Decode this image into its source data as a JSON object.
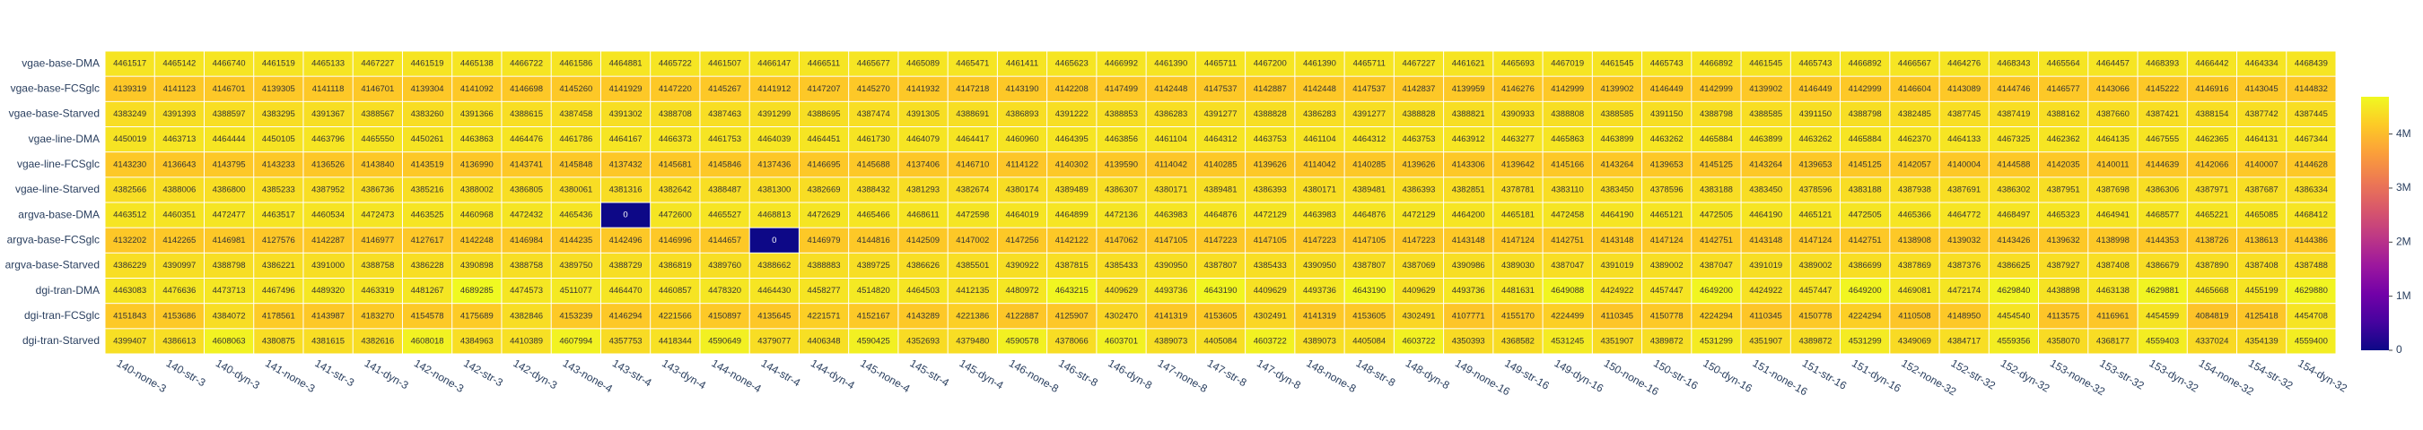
{
  "chart_data": {
    "type": "heatmap",
    "colorscale": "Plasma",
    "x": [
      "140-none-3",
      "140-str-3",
      "140-dyn-3",
      "141-none-3",
      "141-str-3",
      "141-dyn-3",
      "142-none-3",
      "142-str-3",
      "142-dyn-3",
      "143-none-4",
      "143-str-4",
      "143-dyn-4",
      "144-none-4",
      "144-str-4",
      "144-dyn-4",
      "145-none-4",
      "145-str-4",
      "145-dyn-4",
      "146-none-8",
      "146-str-8",
      "146-dyn-8",
      "147-none-8",
      "147-str-8",
      "147-dyn-8",
      "148-none-8",
      "148-str-8",
      "148-dyn-8",
      "149-none-16",
      "149-str-16",
      "149-dyn-16",
      "150-none-16",
      "150-str-16",
      "150-dyn-16",
      "151-none-16",
      "151-str-16",
      "151-dyn-16",
      "152-none-32",
      "152-str-32",
      "152-dyn-32",
      "153-none-32",
      "153-str-32",
      "153-dyn-32",
      "154-none-32",
      "154-str-32",
      "154-dyn-32"
    ],
    "y": [
      "vgae-base-DMA",
      "vgae-base-FCSglc",
      "vgae-base-Starved",
      "vgae-line-DMA",
      "vgae-line-FCSglc",
      "vgae-line-Starved",
      "argva-base-DMA",
      "argva-base-FCSglc",
      "argva-base-Starved",
      "dgi-tran-DMA",
      "dgi-tran-FCSglc",
      "dgi-tran-Starved"
    ],
    "z": [
      [
        4461517,
        4465142,
        4466740,
        4461519,
        4465133,
        4467227,
        4461519,
        4465138,
        4466722,
        4461586,
        4464881,
        4465722,
        4461507,
        4466147,
        4466511,
        4465677,
        4465089,
        4465471,
        4461411,
        4465623,
        4466992,
        4461390,
        4465711,
        4467200,
        4461390,
        4465711,
        4467227,
        4461621,
        4465693,
        4467019,
        4461545,
        4465743,
        4466892,
        4461545,
        4465743,
        4466892,
        4466567,
        4464276,
        4468343,
        4465564,
        4464457,
        4468393,
        4466442,
        4464334,
        4468439
      ],
      [
        4139319,
        4141123,
        4146701,
        4139305,
        4141118,
        4146701,
        4139304,
        4141092,
        4146698,
        4145260,
        4141929,
        4147220,
        4145267,
        4141912,
        4147207,
        4145270,
        4141932,
        4147218,
        4143190,
        4142208,
        4147499,
        4142448,
        4147537,
        4142887,
        4142448,
        4147537,
        4142837,
        4139959,
        4146276,
        4142999,
        4139902,
        4146449,
        4142999,
        4139902,
        4146449,
        4142999,
        4146604,
        4143089,
        4144746,
        4146577,
        4143066,
        4145222,
        4146916,
        4143045,
        4144832
      ],
      [
        4383249,
        4391393,
        4388597,
        4383295,
        4391367,
        4388567,
        4383260,
        4391366,
        4388615,
        4387458,
        4391302,
        4388708,
        4387463,
        4391299,
        4388695,
        4387474,
        4391305,
        4388691,
        4386893,
        4391222,
        4388853,
        4386283,
        4391277,
        4388828,
        4386283,
        4391277,
        4388828,
        4388821,
        4390933,
        4388808,
        4388585,
        4391150,
        4388798,
        4388585,
        4391150,
        4388798,
        4382485,
        4387745,
        4387419,
        4388162,
        4387660,
        4387421,
        4388154,
        4387742,
        4387445
      ],
      [
        4450019,
        4463713,
        4464444,
        4450105,
        4463796,
        4465550,
        4450261,
        4463863,
        4464476,
        4461786,
        4464167,
        4466373,
        4461753,
        4464039,
        4464451,
        4461730,
        4464079,
        4464417,
        4460960,
        4464395,
        4463856,
        4461104,
        4464312,
        4463753,
        4461104,
        4464312,
        4463753,
        4463912,
        4463277,
        4465863,
        4463899,
        4463262,
        4465884,
        4463899,
        4463262,
        4465884,
        4462370,
        4464133,
        4467325,
        4462362,
        4464135,
        4467555,
        4462365,
        4464131,
        4467344
      ],
      [
        4143230,
        4136643,
        4143795,
        4143233,
        4136526,
        4143840,
        4143519,
        4136990,
        4143741,
        4145848,
        4137432,
        4145681,
        4145846,
        4137436,
        4146695,
        4145688,
        4137406,
        4146710,
        4114122,
        4140302,
        4139590,
        4114042,
        4140285,
        4139626,
        4114042,
        4140285,
        4139626,
        4143306,
        4139642,
        4145166,
        4143264,
        4139653,
        4145125,
        4143264,
        4139653,
        4145125,
        4142057,
        4140004,
        4144588,
        4142035,
        4140011,
        4144639,
        4142066,
        4140007,
        4144628
      ],
      [
        4382566,
        4388006,
        4386800,
        4385233,
        4387952,
        4386736,
        4385216,
        4388002,
        4386805,
        4380061,
        4381316,
        4382642,
        4388487,
        4381300,
        4382669,
        4388432,
        4381293,
        4382674,
        4380174,
        4389489,
        4386307,
        4380171,
        4389481,
        4386393,
        4380171,
        4389481,
        4386393,
        4382851,
        4378781,
        4383110,
        4383450,
        4378596,
        4383188,
        4383450,
        4378596,
        4383188,
        4387938,
        4387691,
        4386302,
        4387951,
        4387698,
        4386306,
        4387971,
        4387687,
        4386334
      ],
      [
        4463512,
        4460351,
        4472477,
        4463517,
        4460534,
        4472473,
        4463525,
        4460968,
        4472432,
        4465436,
        0,
        4472600,
        4465527,
        4468813,
        4472629,
        4465466,
        4468611,
        4472598,
        4464019,
        4464899,
        4472136,
        4463983,
        4464876,
        4472129,
        4463983,
        4464876,
        4472129,
        4464200,
        4465181,
        4472458,
        4464190,
        4465121,
        4472505,
        4464190,
        4465121,
        4472505,
        4465366,
        4464772,
        4468497,
        4465323,
        4464941,
        4468577,
        4465221,
        4465085,
        4468412
      ],
      [
        4132202,
        4142265,
        4146981,
        4127576,
        4142287,
        4146977,
        4127617,
        4142248,
        4146984,
        4144235,
        4142496,
        4146996,
        4144657,
        0,
        4146979,
        4144816,
        4142509,
        4147002,
        4147256,
        4142122,
        4147062,
        4147105,
        4147223,
        4147105,
        4147223,
        4147105,
        4147223,
        4143148,
        4147124,
        4142751,
        4143148,
        4147124,
        4142751,
        4143148,
        4147124,
        4142751,
        4138908,
        4139032,
        4143426,
        4139632,
        4138998,
        4144353,
        4138726,
        4138613,
        4144386
      ],
      [
        4386229,
        4390997,
        4388798,
        4386221,
        4391000,
        4388758,
        4386228,
        4390898,
        4388758,
        4389750,
        4388729,
        4386819,
        4389760,
        4388662,
        4388883,
        4389725,
        4386626,
        4385501,
        4390922,
        4387815,
        4385433,
        4390950,
        4387807,
        4385433,
        4390950,
        4387807,
        4387069,
        4390986,
        4389030,
        4387047,
        4391019,
        4389002,
        4387047,
        4391019,
        4389002,
        4386699,
        4387869,
        4387376,
        4386625,
        4387927,
        4387408,
        4386679,
        4387890,
        4387408,
        4387488
      ],
      [
        4463083,
        4476636,
        4473713,
        4467496,
        4489320,
        4463319,
        4481267,
        4689285,
        4474573,
        4511077,
        4464470,
        4460857,
        4478320,
        4464430,
        4458277,
        4514820,
        4464503,
        4412135,
        4480972,
        4643215,
        4409629,
        4493736,
        4643190,
        4409629,
        4493736,
        4643190,
        4409629,
        4493736,
        4481631,
        4649088,
        4424922,
        4457447,
        4649200,
        4424922,
        4457447,
        4649200,
        4469081,
        4472174,
        4629840,
        4438898,
        4463138,
        4629881,
        4465668,
        4455199,
        4629880
      ],
      [
        4151843,
        4153686,
        4384072,
        4178561,
        4143987,
        4183270,
        4154578,
        4175689,
        4382846,
        4153239,
        4146294,
        4221566,
        4150897,
        4135645,
        4221571,
        4152167,
        4143289,
        4221386,
        4122887,
        4125907,
        4302470,
        4141319,
        4153605,
        4302491,
        4141319,
        4153605,
        4302491,
        4107771,
        4155170,
        4224499,
        4110345,
        4150778,
        4224294,
        4110345,
        4150778,
        4224294,
        4110508,
        4148950,
        4454540,
        4113575,
        4116961,
        4454599,
        4084819,
        4125418,
        4454708
      ],
      [
        4399407,
        4386613,
        4608063,
        4380875,
        4381615,
        4382616,
        4608018,
        4384963,
        4410389,
        4607994,
        4357753,
        4418344,
        4590649,
        4379077,
        4406348,
        4590425,
        4352693,
        4379480,
        4590578,
        4378066,
        4603701,
        4389073,
        4405084,
        4603722,
        4389073,
        4405084,
        4603722,
        4350393,
        4368582,
        4531245,
        4351907,
        4389872,
        4531299,
        4351907,
        4389872,
        4531299,
        4349069,
        4384717,
        4559356,
        4358070,
        4368177,
        4559403,
        4337024,
        4354139,
        4559400
      ]
    ],
    "zlim": [
      0,
      4689285
    ],
    "zticks": [
      0,
      {
        "value": 1000000,
        "label": "1M"
      },
      {
        "value": 2000000,
        "label": "2M"
      },
      {
        "value": 3000000,
        "label": "3M"
      },
      {
        "value": 4000000,
        "label": "4M"
      }
    ]
  }
}
